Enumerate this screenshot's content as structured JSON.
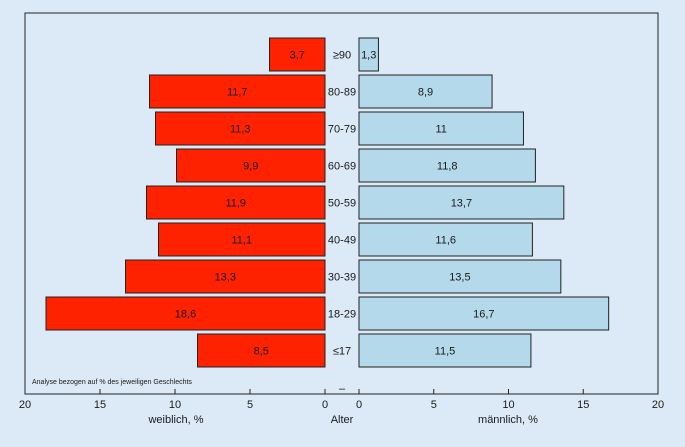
{
  "chart_data": {
    "type": "bar",
    "orientation": "horizontal",
    "layout": "population-pyramid",
    "categories": [
      "≥90",
      "80-89",
      "70-79",
      "60-69",
      "50-59",
      "40-49",
      "30-39",
      "18-29",
      "≤17"
    ],
    "series": [
      {
        "name": "weiblich, %",
        "side": "left",
        "color": "#ff2200",
        "values": [
          3.7,
          11.7,
          11.3,
          9.9,
          11.9,
          11.1,
          13.3,
          18.6,
          8.5
        ],
        "value_labels": [
          "3,7",
          "11,7",
          "11,3",
          "9,9",
          "11,9",
          "11,1",
          "13,3",
          "18,6",
          "8,5"
        ]
      },
      {
        "name": "männlich, %",
        "side": "right",
        "color": "#b4d9eb",
        "values": [
          1.3,
          8.9,
          11,
          11.8,
          13.7,
          11.6,
          13.5,
          16.7,
          11.5
        ],
        "value_labels": [
          "1,3",
          "8,9",
          "11",
          "11,8",
          "13,7",
          "11,6",
          "13,5",
          "16,7",
          "11,5"
        ]
      }
    ],
    "left_axis": {
      "label": "weiblich, %",
      "ticks": [
        "20",
        "15",
        "10",
        "5",
        "0"
      ],
      "range": [
        20,
        0
      ]
    },
    "right_axis": {
      "label": "männlich, %",
      "ticks": [
        "0",
        "5",
        "10",
        "15",
        "20"
      ],
      "range": [
        0,
        20
      ]
    },
    "center_label": "Alter",
    "center_dash": "–",
    "note": "Analyse bezogen auf % des jeweiligen Geschlechts",
    "grid": false,
    "legend": "none"
  }
}
